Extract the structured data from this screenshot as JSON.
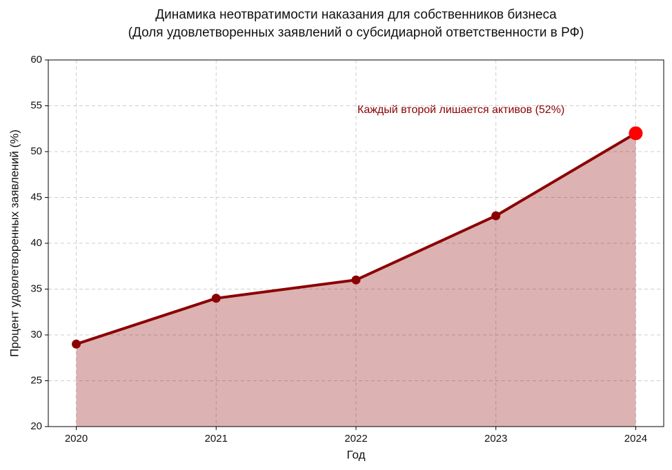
{
  "chart_data": {
    "type": "line",
    "title": [
      "Динамика неотвратимости наказания для собственников бизнеса",
      "(Доля удовлетворенных заявлений о субсидиарной ответственности в РФ)"
    ],
    "x_label": "Год",
    "y_label": "Процент удовлетворенных заявлений (%)",
    "x": [
      2020,
      2021,
      2022,
      2023,
      2024
    ],
    "series": [
      {
        "color": "#8b0000",
        "values": [
          29,
          34,
          36,
          43,
          52
        ]
      }
    ],
    "highlight_color": "#ff0000",
    "annotation": "Каждый второй лишается активов (52%)",
    "xlim": [
      2019.8,
      2024.2
    ],
    "xticks": [
      2020,
      2021,
      2022,
      2023,
      2024
    ],
    "ylim": [
      20,
      60
    ],
    "yticks": [
      20,
      25,
      30,
      35,
      40,
      45,
      50,
      55,
      60
    ],
    "grid": true,
    "fill_area": true
  }
}
